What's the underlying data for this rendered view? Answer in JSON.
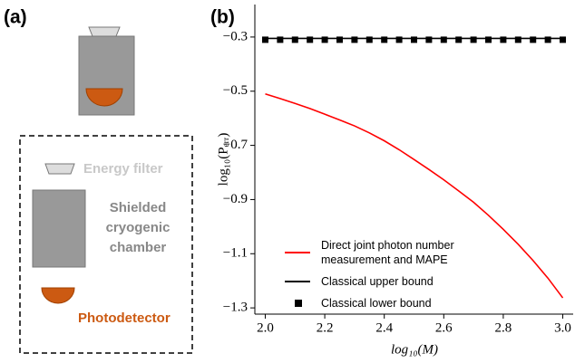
{
  "panel_a": {
    "label": "(a)",
    "filter_label": "Energy filter",
    "chamber_label": [
      "Shielded",
      "cryogenic",
      "chamber"
    ],
    "detector_label": "Photodetector"
  },
  "chart_data": {
    "type": "line",
    "panel_label": "(b)",
    "x_label": "log₁₀(M)",
    "y_label": "log₁₀(Pₑᵣᵣ)",
    "x": [
      2.0,
      2.05,
      2.1,
      2.15,
      2.2,
      2.25,
      2.3,
      2.35,
      2.4,
      2.45,
      2.5,
      2.55,
      2.6,
      2.65,
      2.7,
      2.75,
      2.8,
      2.85,
      2.9,
      2.95,
      3.0
    ],
    "series": [
      {
        "name": "Direct joint photon number measurement and MAPE",
        "color": "#ff0000",
        "style": "line",
        "values": [
          -0.51,
          -0.527,
          -0.545,
          -0.564,
          -0.585,
          -0.606,
          -0.628,
          -0.654,
          -0.683,
          -0.716,
          -0.752,
          -0.789,
          -0.827,
          -0.868,
          -0.91,
          -0.958,
          -1.01,
          -1.065,
          -1.125,
          -1.19,
          -1.263
        ]
      },
      {
        "name": "Classical upper bound",
        "color": "#000000",
        "style": "line",
        "values": [
          -0.305,
          -0.305,
          -0.305,
          -0.305,
          -0.305,
          -0.305,
          -0.305,
          -0.305,
          -0.305,
          -0.305,
          -0.305,
          -0.305,
          -0.305,
          -0.305,
          -0.305,
          -0.305,
          -0.305,
          -0.305,
          -0.305,
          -0.305,
          -0.305
        ]
      },
      {
        "name": "Classical lower bound",
        "color": "#000000",
        "style": "marker",
        "values": [
          -0.31,
          -0.31,
          -0.31,
          -0.31,
          -0.31,
          -0.31,
          -0.31,
          -0.31,
          -0.31,
          -0.31,
          -0.31,
          -0.31,
          -0.31,
          -0.31,
          -0.31,
          -0.31,
          -0.31,
          -0.31,
          -0.31,
          -0.31,
          -0.31
        ]
      }
    ],
    "xlim": [
      1.965,
      3.035
    ],
    "ylim": [
      -1.323,
      -0.18
    ],
    "xticks": [
      {
        "value": 2.0,
        "label": "2.0"
      },
      2.2,
      2.4,
      2.6,
      2.8,
      {
        "value": 3.0,
        "label": "3.0"
      }
    ],
    "yticks": [
      {
        "value": -0.3,
        "label": "−0.3"
      },
      {
        "value": -0.5,
        "label": "−0.5"
      },
      {
        "value": -0.7,
        "label": "−0.7"
      },
      {
        "value": -0.9,
        "label": "−0.9"
      },
      {
        "value": -1.1,
        "label": "−1.1"
      },
      {
        "value": -1.3,
        "label": "−1.3"
      }
    ],
    "legend": "lower left"
  }
}
